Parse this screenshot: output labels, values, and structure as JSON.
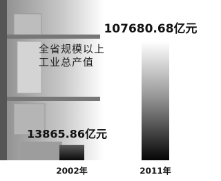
{
  "chart_data": {
    "type": "bar",
    "title": "全省规模以上工业总产值",
    "categories": [
      "2002年",
      "2011年"
    ],
    "values": [
      13865.86,
      107680.68
    ],
    "value_labels": [
      "13865.86亿元",
      "107680.68亿元"
    ]
  }
}
